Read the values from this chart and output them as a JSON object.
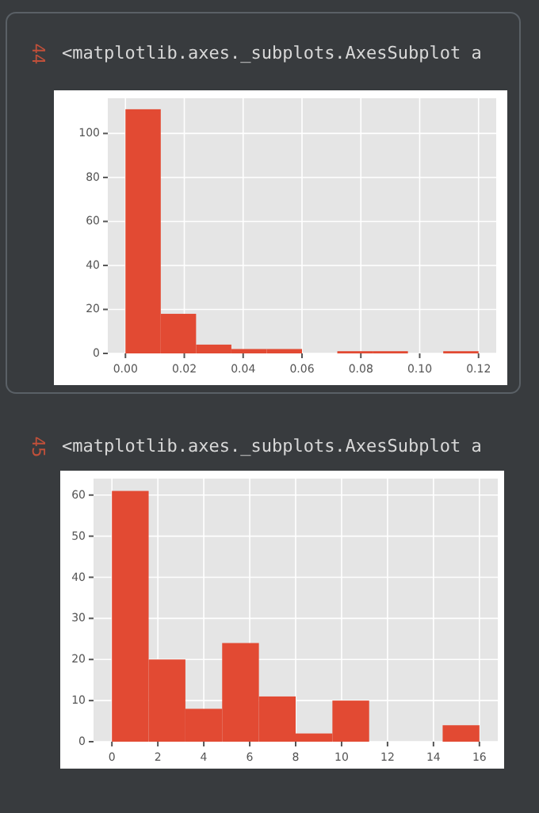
{
  "chart_data": [
    {
      "type": "histogram",
      "annotations": [
        "44",
        "<matplotlib.axes._subplots.AxesSubplot a"
      ],
      "bins": [
        0,
        0.012,
        0.024,
        0.036,
        0.048,
        0.06,
        0.072,
        0.084,
        0.096,
        0.108,
        0.12
      ],
      "values": [
        111,
        18,
        4,
        2,
        2,
        0,
        1,
        1,
        0,
        1
      ],
      "color": "#e24a33",
      "xlim": [
        -0.006,
        0.126
      ],
      "ylim": [
        0,
        116
      ],
      "xticks": [
        {
          "value": 0,
          "label": "0.00"
        },
        {
          "value": 0.02,
          "label": "0.02"
        },
        {
          "value": 0.04,
          "label": "0.04"
        },
        {
          "value": 0.06,
          "label": "0.06"
        },
        {
          "value": 0.08,
          "label": "0.08"
        },
        {
          "value": 0.1,
          "label": "0.10"
        },
        {
          "value": 0.12,
          "label": "0.12"
        }
      ],
      "yticks": [
        0,
        20,
        40,
        60,
        80,
        100
      ],
      "grid": true
    },
    {
      "type": "histogram",
      "annotations": [
        "45",
        "<matplotlib.axes._subplots.AxesSubplot a"
      ],
      "bins": [
        0,
        1.6,
        3.2,
        4.8,
        6.4,
        8,
        9.6,
        11.2,
        12.8,
        14.4,
        16
      ],
      "values": [
        61,
        20,
        8,
        24,
        11,
        2,
        10,
        0,
        0,
        4
      ],
      "color": "#e24a33",
      "xlim": [
        -0.8,
        16.8
      ],
      "ylim": [
        0,
        64
      ],
      "xticks": [
        0,
        2,
        4,
        6,
        8,
        10,
        12,
        14,
        16
      ],
      "yticks": [
        0,
        10,
        20,
        30,
        40,
        50,
        60
      ],
      "grid": true
    }
  ]
}
